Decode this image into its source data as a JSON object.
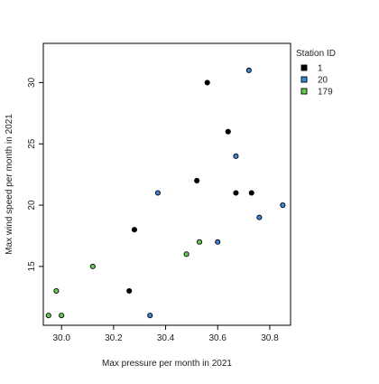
{
  "chart_data": {
    "type": "scatter",
    "xlabel": "Max pressure per month in 2021",
    "ylabel": "Max wind speed per month in 2021",
    "xlim": [
      29.93,
      30.88
    ],
    "ylim": [
      10.2,
      33.2
    ],
    "x_ticks": [
      30.0,
      30.2,
      30.4,
      30.6,
      30.8
    ],
    "x_tick_labels": [
      "30.0",
      "30.2",
      "30.4",
      "30.6",
      "30.8"
    ],
    "y_ticks": [
      15,
      20,
      25,
      30
    ],
    "y_tick_labels": [
      "15",
      "20",
      "25",
      "30"
    ],
    "grid": false,
    "legend": {
      "title": "Station ID",
      "position": "right",
      "entries": [
        {
          "label": "1",
          "color": "#000000"
        },
        {
          "label": "20",
          "color": "#3a86d4"
        },
        {
          "label": "179",
          "color": "#61d04f"
        }
      ]
    },
    "series": [
      {
        "name": "1",
        "color": "#000000",
        "points": [
          {
            "x": 30.56,
            "y": 30
          },
          {
            "x": 30.64,
            "y": 26
          },
          {
            "x": 30.52,
            "y": 22
          },
          {
            "x": 30.67,
            "y": 21
          },
          {
            "x": 30.73,
            "y": 21
          },
          {
            "x": 30.28,
            "y": 18
          },
          {
            "x": 30.26,
            "y": 13
          }
        ]
      },
      {
        "name": "20",
        "color": "#3a86d4",
        "points": [
          {
            "x": 30.72,
            "y": 31
          },
          {
            "x": 30.67,
            "y": 24
          },
          {
            "x": 30.37,
            "y": 21
          },
          {
            "x": 30.85,
            "y": 20
          },
          {
            "x": 30.76,
            "y": 19
          },
          {
            "x": 30.6,
            "y": 17
          },
          {
            "x": 30.34,
            "y": 11
          }
        ]
      },
      {
        "name": "179",
        "color": "#61d04f",
        "points": [
          {
            "x": 30.53,
            "y": 17
          },
          {
            "x": 30.48,
            "y": 16
          },
          {
            "x": 30.12,
            "y": 15
          },
          {
            "x": 29.98,
            "y": 13
          },
          {
            "x": 29.95,
            "y": 11
          },
          {
            "x": 30.0,
            "y": 11
          }
        ]
      }
    ]
  }
}
